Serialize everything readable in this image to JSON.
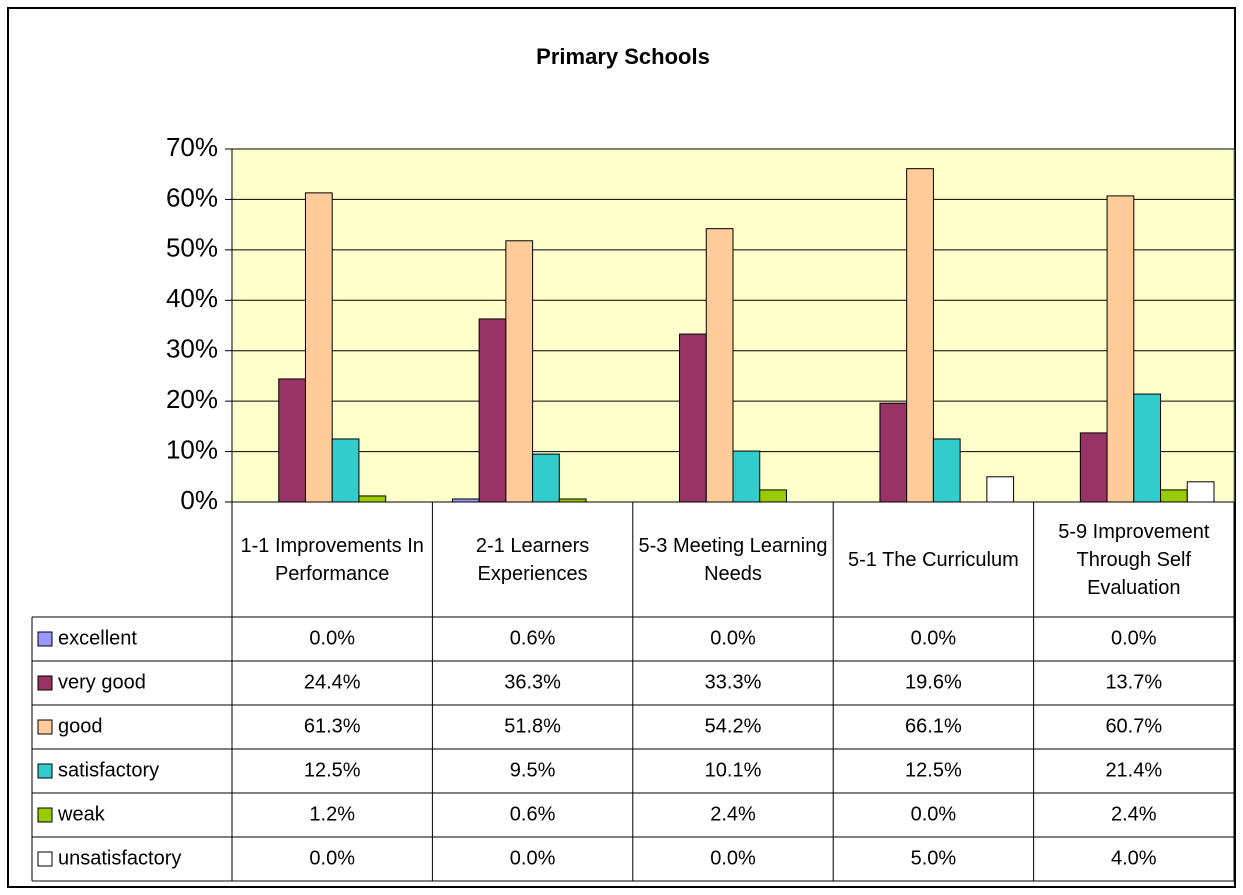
{
  "chart_data": {
    "type": "bar",
    "title": "Primary Schools",
    "categories": [
      "1-1 Improvements In Performance",
      "2-1 Learners Experiences",
      "5-3 Meeting Learning Needs",
      "5-1 The Curriculum",
      "5-9 Improvement Through Self Evaluation"
    ],
    "series": [
      {
        "name": "excellent",
        "color": "#9999ff",
        "values": [
          0.0,
          0.6,
          0.0,
          0.0,
          0.0
        ],
        "value_labels": [
          "0.0%",
          "0.6%",
          "0.0%",
          "0.0%",
          "0.0%"
        ]
      },
      {
        "name": "very good",
        "color": "#993366",
        "values": [
          24.4,
          36.3,
          33.3,
          19.6,
          13.7
        ],
        "value_labels": [
          "24.4%",
          "36.3%",
          "33.3%",
          "19.6%",
          "13.7%"
        ]
      },
      {
        "name": "good",
        "color": "#ffcc99",
        "values": [
          61.3,
          51.8,
          54.2,
          66.1,
          60.7
        ],
        "value_labels": [
          "61.3%",
          "51.8%",
          "54.2%",
          "66.1%",
          "60.7%"
        ]
      },
      {
        "name": "satisfactory",
        "color": "#33cccc",
        "values": [
          12.5,
          9.5,
          10.1,
          12.5,
          21.4
        ],
        "value_labels": [
          "12.5%",
          "9.5%",
          "10.1%",
          "12.5%",
          "21.4%"
        ]
      },
      {
        "name": "weak",
        "color": "#99cc00",
        "values": [
          1.2,
          0.6,
          2.4,
          0.0,
          2.4
        ],
        "value_labels": [
          "1.2%",
          "0.6%",
          "2.4%",
          "0.0%",
          "2.4%"
        ]
      },
      {
        "name": "unsatisfactory",
        "color": "#ffffff",
        "values": [
          0.0,
          0.0,
          0.0,
          5.0,
          4.0
        ],
        "value_labels": [
          "0.0%",
          "0.0%",
          "0.0%",
          "5.0%",
          "4.0%"
        ]
      }
    ],
    "ylim": [
      0,
      70
    ],
    "yticks": [
      {
        "value": 0,
        "label": "0%"
      },
      {
        "value": 10,
        "label": "10%"
      },
      {
        "value": 20,
        "label": "20%"
      },
      {
        "value": 30,
        "label": "30%"
      },
      {
        "value": 40,
        "label": "40%"
      },
      {
        "value": 50,
        "label": "50%"
      },
      {
        "value": 60,
        "label": "60%"
      },
      {
        "value": 70,
        "label": "70%"
      }
    ],
    "grid": true
  }
}
